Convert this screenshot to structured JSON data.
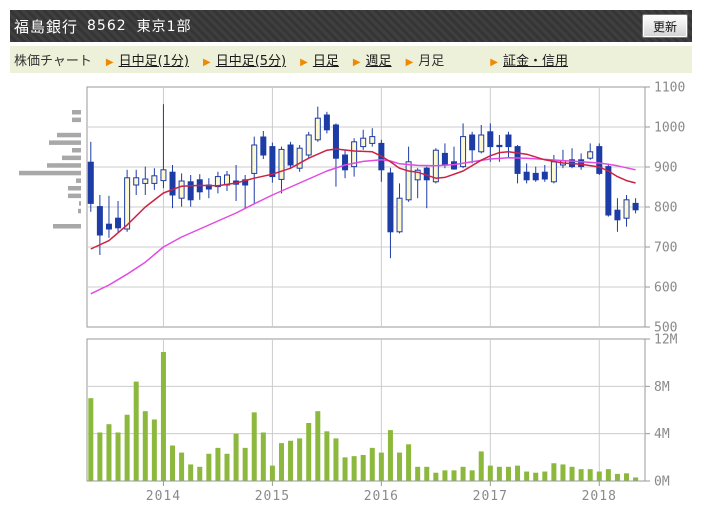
{
  "header": {
    "stock_name": "福島銀行",
    "stock_code": "8562",
    "market": "東京1部",
    "refresh_label": "更新"
  },
  "nav": {
    "page_label": "株価チャート",
    "arrow_glyph": "▶",
    "arrow_color": "#ef8a00",
    "items": [
      {
        "name": "tab-intraday-1min",
        "label": "日中足(1分)",
        "underlined": true,
        "active": false,
        "spacer": false
      },
      {
        "name": "tab-intraday-5min",
        "label": "日中足(5分)",
        "underlined": true,
        "active": false,
        "spacer": false
      },
      {
        "name": "tab-daily",
        "label": "日足",
        "underlined": true,
        "active": false,
        "spacer": false
      },
      {
        "name": "tab-weekly",
        "label": "週足",
        "underlined": true,
        "active": false,
        "spacer": false
      },
      {
        "name": "tab-monthly",
        "label": "月足",
        "underlined": false,
        "active": true,
        "spacer": false
      },
      {
        "name": "tab-margin-credit",
        "label": "証金・信用",
        "underlined": true,
        "active": false,
        "spacer": true
      }
    ]
  },
  "chart_data": {
    "type": "candlestick_with_volume",
    "title": "",
    "grid": true,
    "price_axis": {
      "side": "right",
      "min": 500,
      "max": 1100,
      "ticks": [
        1100,
        1000,
        900,
        800,
        700,
        600,
        500
      ]
    },
    "volume_axis": {
      "side": "right",
      "max_millions": 12,
      "ticks": [
        "12M",
        "8M",
        "4M",
        "0M"
      ],
      "tick_values": [
        12,
        8,
        4,
        0
      ]
    },
    "x_axis": {
      "year_ticks": [
        {
          "label": "2014",
          "index": 8
        },
        {
          "label": "2015",
          "index": 20
        },
        {
          "label": "2016",
          "index": 32
        },
        {
          "label": "2017",
          "index": 44
        },
        {
          "label": "2018",
          "index": 56
        }
      ]
    },
    "months": [
      "2013-05",
      "2013-06",
      "2013-07",
      "2013-08",
      "2013-09",
      "2013-10",
      "2013-11",
      "2013-12",
      "2014-01",
      "2014-02",
      "2014-03",
      "2014-04",
      "2014-05",
      "2014-06",
      "2014-07",
      "2014-08",
      "2014-09",
      "2014-10",
      "2014-11",
      "2014-12",
      "2015-01",
      "2015-02",
      "2015-03",
      "2015-04",
      "2015-05",
      "2015-06",
      "2015-07",
      "2015-08",
      "2015-09",
      "2015-10",
      "2015-11",
      "2015-12",
      "2016-01",
      "2016-02",
      "2016-03",
      "2016-04",
      "2016-05",
      "2016-06",
      "2016-07",
      "2016-08",
      "2016-09",
      "2016-10",
      "2016-11",
      "2016-12",
      "2017-01",
      "2017-02",
      "2017-03",
      "2017-04",
      "2017-05",
      "2017-06",
      "2017-07",
      "2017-08",
      "2017-09",
      "2017-10",
      "2017-11",
      "2017-12",
      "2018-01",
      "2018-02",
      "2018-03",
      "2018-04",
      "2018-05"
    ],
    "ohlc": [
      [
        912,
        963,
        788,
        809
      ],
      [
        801,
        830,
        680,
        730
      ],
      [
        757,
        828,
        723,
        745
      ],
      [
        772,
        815,
        738,
        748
      ],
      [
        745,
        893,
        738,
        873
      ],
      [
        855,
        893,
        830,
        873
      ],
      [
        859,
        901,
        830,
        870
      ],
      [
        859,
        897,
        843,
        878
      ],
      [
        866,
        1057,
        847,
        893
      ],
      [
        887,
        905,
        797,
        830
      ],
      [
        822,
        884,
        801,
        865
      ],
      [
        863,
        880,
        801,
        818
      ],
      [
        868,
        882,
        818,
        838
      ],
      [
        855,
        872,
        822,
        845
      ],
      [
        851,
        888,
        834,
        876
      ],
      [
        855,
        890,
        840,
        880
      ],
      [
        865,
        905,
        815,
        857
      ],
      [
        868,
        880,
        797,
        855
      ],
      [
        884,
        976,
        808,
        955
      ],
      [
        975,
        990,
        920,
        930
      ],
      [
        951,
        961,
        861,
        876
      ],
      [
        869,
        951,
        834,
        944
      ],
      [
        955,
        963,
        897,
        905
      ],
      [
        897,
        955,
        888,
        947
      ],
      [
        930,
        988,
        922,
        980
      ],
      [
        968,
        1051,
        963,
        1022
      ],
      [
        1030,
        1038,
        984,
        993
      ],
      [
        1005,
        1009,
        851,
        922
      ],
      [
        930,
        943,
        872,
        893
      ],
      [
        901,
        972,
        876,
        963
      ],
      [
        951,
        993,
        943,
        972
      ],
      [
        959,
        997,
        951,
        976
      ],
      [
        959,
        968,
        863,
        893
      ],
      [
        885,
        898,
        672,
        738
      ],
      [
        738,
        859,
        734,
        822
      ],
      [
        818,
        951,
        813,
        913
      ],
      [
        868,
        897,
        822,
        892
      ],
      [
        897,
        901,
        797,
        868
      ],
      [
        863,
        947,
        859,
        942
      ],
      [
        934,
        959,
        897,
        905
      ],
      [
        913,
        951,
        893,
        895
      ],
      [
        901,
        1009,
        897,
        976
      ],
      [
        980,
        988,
        909,
        943
      ],
      [
        938,
        1005,
        934,
        980
      ],
      [
        988,
        1009,
        913,
        951
      ],
      [
        954,
        980,
        913,
        951
      ],
      [
        980,
        988,
        922,
        951
      ],
      [
        951,
        955,
        859,
        884
      ],
      [
        887,
        909,
        859,
        868
      ],
      [
        884,
        901,
        863,
        868
      ],
      [
        887,
        905,
        863,
        870
      ],
      [
        863,
        930,
        859,
        913
      ],
      [
        905,
        943,
        897,
        915
      ],
      [
        918,
        947,
        897,
        901
      ],
      [
        918,
        934,
        893,
        901
      ],
      [
        922,
        959,
        918,
        938
      ],
      [
        951,
        959,
        880,
        884
      ],
      [
        901,
        905,
        776,
        780
      ],
      [
        792,
        822,
        738,
        768
      ],
      [
        772,
        830,
        751,
        818
      ],
      [
        809,
        822,
        784,
        793
      ]
    ],
    "volumes_millions": [
      7.0,
      4.1,
      4.8,
      4.1,
      5.6,
      8.4,
      5.9,
      5.2,
      10.9,
      3.0,
      2.4,
      1.4,
      1.2,
      2.3,
      2.8,
      2.3,
      4.0,
      2.8,
      5.8,
      4.1,
      1.3,
      3.2,
      3.4,
      3.6,
      4.9,
      5.9,
      4.2,
      3.6,
      2.0,
      2.1,
      2.2,
      2.8,
      2.4,
      4.3,
      2.4,
      3.1,
      1.2,
      1.2,
      0.7,
      0.9,
      0.9,
      1.2,
      0.9,
      2.5,
      1.3,
      1.2,
      1.2,
      1.3,
      0.8,
      0.7,
      0.8,
      1.5,
      1.4,
      1.2,
      1.0,
      1.0,
      0.8,
      1.0,
      0.6,
      0.65,
      0.3
    ],
    "ma_short": {
      "name": "ma-short",
      "color": "#cc2244",
      "points": [
        [
          0,
          695
        ],
        [
          2,
          716
        ],
        [
          4,
          755
        ],
        [
          6,
          800
        ],
        [
          8,
          835
        ],
        [
          10,
          852
        ],
        [
          12,
          854
        ],
        [
          14,
          853
        ],
        [
          16,
          860
        ],
        [
          18,
          872
        ],
        [
          20,
          882
        ],
        [
          22,
          897
        ],
        [
          24,
          922
        ],
        [
          26,
          942
        ],
        [
          27,
          945
        ],
        [
          29,
          940
        ],
        [
          31,
          938
        ],
        [
          32,
          927
        ],
        [
          33,
          913
        ],
        [
          34,
          897
        ],
        [
          35,
          890
        ],
        [
          36,
          887
        ],
        [
          38,
          872
        ],
        [
          39,
          874
        ],
        [
          41,
          890
        ],
        [
          43,
          917
        ],
        [
          44,
          928
        ],
        [
          45,
          936
        ],
        [
          46,
          938
        ],
        [
          48,
          932
        ],
        [
          50,
          918
        ],
        [
          52,
          910
        ],
        [
          54,
          907
        ],
        [
          56,
          900
        ],
        [
          57,
          890
        ],
        [
          58,
          876
        ],
        [
          59,
          866
        ],
        [
          60,
          860
        ]
      ]
    },
    "ma_long": {
      "name": "ma-long",
      "color": "#e24ae2",
      "points": [
        [
          0,
          583
        ],
        [
          2,
          605
        ],
        [
          4,
          632
        ],
        [
          6,
          662
        ],
        [
          8,
          700
        ],
        [
          10,
          725
        ],
        [
          12,
          745
        ],
        [
          14,
          765
        ],
        [
          16,
          785
        ],
        [
          18,
          808
        ],
        [
          20,
          830
        ],
        [
          22,
          850
        ],
        [
          24,
          870
        ],
        [
          26,
          890
        ],
        [
          28,
          905
        ],
        [
          30,
          914
        ],
        [
          32,
          918
        ],
        [
          33,
          915
        ],
        [
          34,
          908
        ],
        [
          36,
          904
        ],
        [
          38,
          903
        ],
        [
          40,
          906
        ],
        [
          42,
          913
        ],
        [
          44,
          920
        ],
        [
          46,
          923
        ],
        [
          48,
          922
        ],
        [
          50,
          919
        ],
        [
          52,
          916
        ],
        [
          54,
          913
        ],
        [
          56,
          910
        ],
        [
          57,
          907
        ],
        [
          58,
          903
        ],
        [
          59,
          898
        ],
        [
          60,
          893
        ]
      ]
    },
    "volume_profile": {
      "color": "#a8a8a8",
      "bars": [
        [
          1037,
          9
        ],
        [
          1018,
          9
        ],
        [
          980,
          24
        ],
        [
          961,
          32
        ],
        [
          942,
          9
        ],
        [
          923,
          19
        ],
        [
          904,
          34
        ],
        [
          885,
          62
        ],
        [
          866,
          5
        ],
        [
          847,
          13
        ],
        [
          828,
          13
        ],
        [
          809,
          2
        ],
        [
          790,
          3
        ],
        [
          752,
          28
        ]
      ]
    },
    "colors": {
      "up_fill": "#fbf8d2",
      "down_fill": "#1d3ca5",
      "outline": "#1d3ca5",
      "volume_bar": "#8bb83d",
      "grid": "#cccccc",
      "border": "#999999",
      "axis_text": "#8a8a8a"
    }
  }
}
